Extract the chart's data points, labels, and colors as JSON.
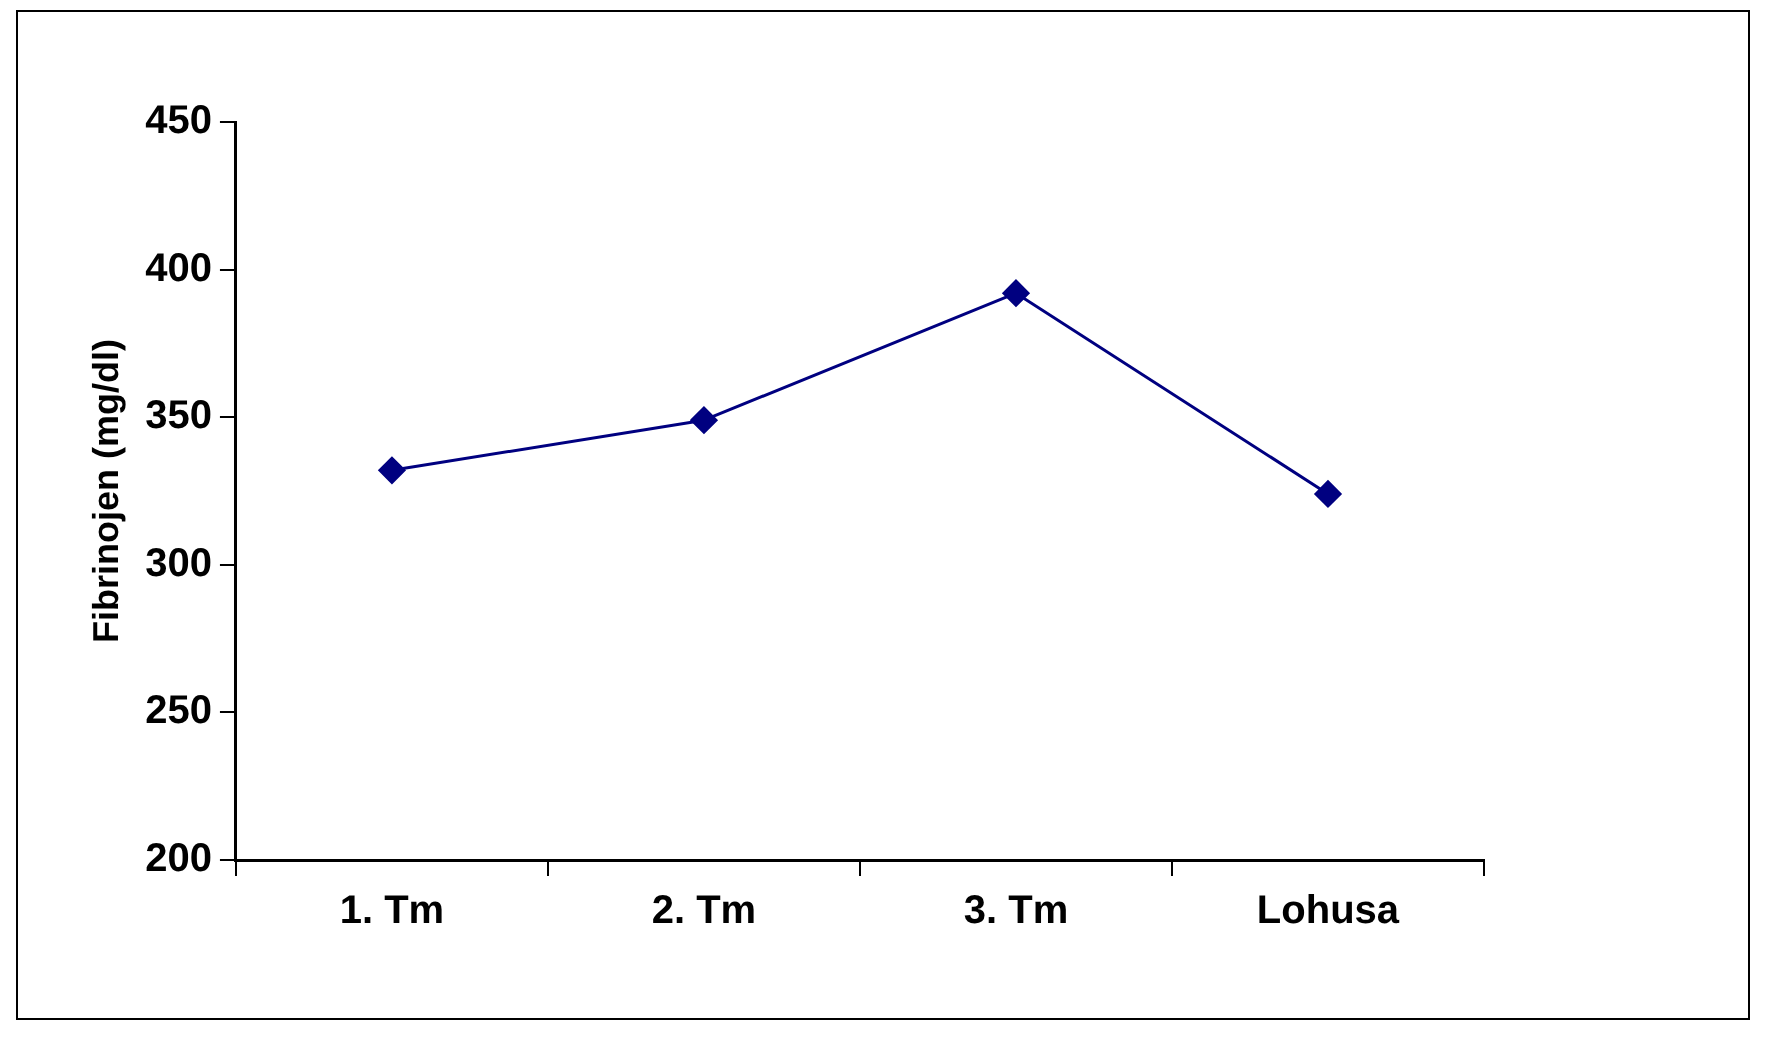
{
  "chart_data": {
    "type": "line",
    "ylabel": "Fibrinojen (mg/dl)",
    "categories": [
      "1. Tm",
      "2. Tm",
      "3. Tm",
      "Lohusa"
    ],
    "series": [
      {
        "color": "#000080",
        "values": [
          332,
          349,
          392,
          324
        ]
      }
    ],
    "ylim": [
      200,
      450
    ],
    "yticks": [
      200,
      250,
      300,
      350,
      400,
      450
    ],
    "grid": false,
    "legend": false,
    "marker": "diamond",
    "line_style": "solid"
  }
}
